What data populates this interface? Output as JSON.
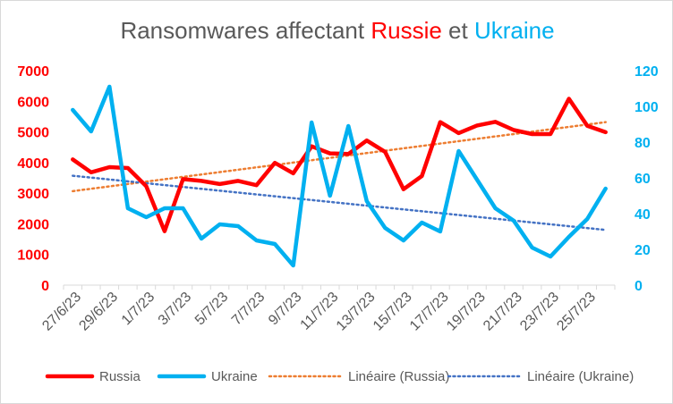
{
  "chart_data": {
    "type": "line",
    "title": {
      "prefix": "Ransomwares affectant ",
      "russia_word": "Russie",
      "middle": " et ",
      "ukraine_word": "Ukraine"
    },
    "x": [
      "27/6/23",
      "28/6/23",
      "29/6/23",
      "30/6/23",
      "1/7/23",
      "2/7/23",
      "3/7/23",
      "4/7/23",
      "5/7/23",
      "6/7/23",
      "7/7/23",
      "8/7/23",
      "9/7/23",
      "10/7/23",
      "11/7/23",
      "12/7/23",
      "13/7/23",
      "14/7/23",
      "15/7/23",
      "16/7/23",
      "17/7/23",
      "18/7/23",
      "19/7/23",
      "20/7/23",
      "21/7/23",
      "22/7/23",
      "23/7/23",
      "24/7/23",
      "25/7/23",
      "26/7/23"
    ],
    "x_tick_labels": [
      "27/6/23",
      "29/6/23",
      "1/7/23",
      "3/7/23",
      "5/7/23",
      "7/7/23",
      "9/7/23",
      "11/7/23",
      "13/7/23",
      "15/7/23",
      "17/7/23",
      "19/7/23",
      "21/7/23",
      "23/7/23",
      "25/7/23"
    ],
    "y_left": {
      "ylim": [
        0,
        7000
      ],
      "ticks": [
        0,
        1000,
        2000,
        3000,
        4000,
        5000,
        6000,
        7000
      ],
      "color": "#ff0000"
    },
    "y_right": {
      "ylim": [
        0,
        120
      ],
      "ticks": [
        0,
        20,
        40,
        60,
        80,
        100,
        120
      ],
      "color": "#00b0f0"
    },
    "series": [
      {
        "name": "Russia",
        "axis": "left",
        "color": "#ff0000",
        "style": "solid",
        "values": [
          4100,
          3680,
          3850,
          3820,
          3230,
          1760,
          3460,
          3400,
          3300,
          3400,
          3260,
          3990,
          3650,
          4530,
          4300,
          4280,
          4720,
          4350,
          3130,
          3560,
          5320,
          4960,
          5210,
          5330,
          5060,
          4930,
          4930,
          6080,
          5200,
          4990
        ]
      },
      {
        "name": "Ukraine",
        "axis": "right",
        "color": "#00b0f0",
        "style": "solid",
        "values": [
          98,
          86,
          111,
          43,
          38,
          43,
          43,
          26,
          34,
          33,
          25,
          23,
          11,
          91,
          50,
          89,
          47,
          32,
          25,
          35,
          30,
          75,
          59,
          43,
          36,
          21,
          16,
          27,
          37,
          54
        ]
      },
      {
        "name": "Linéaire (Russia)",
        "axis": "left",
        "color": "#ed7d31",
        "style": "dotted",
        "trend_of": "Russia"
      },
      {
        "name": "Linéaire (Ukraine)",
        "axis": "right",
        "color": "#4472c4",
        "style": "dotted",
        "trend_of": "Ukraine"
      }
    ],
    "grid": false,
    "legend_position": "bottom"
  }
}
